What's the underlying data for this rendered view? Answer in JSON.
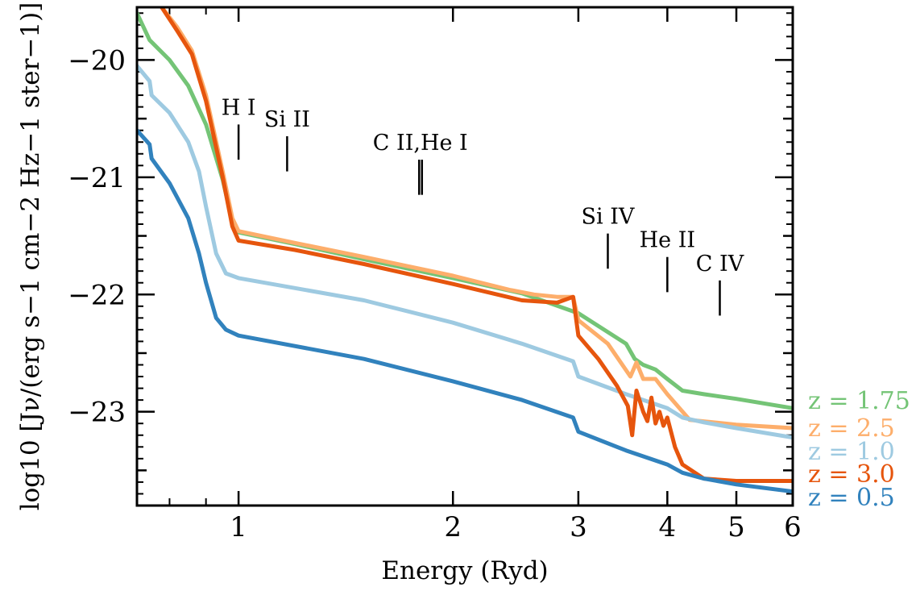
{
  "chart_data": {
    "type": "line",
    "title": "",
    "xlabel": "Energy (Ryd)",
    "ylabel": "log10 [Jν/(erg s−1 cm−2 Hz−1 ster−1)]",
    "x_scale": "log",
    "xlim": [
      0.72,
      6.0
    ],
    "ylim": [
      -23.8,
      -19.55
    ],
    "x_ticks": [
      1,
      2,
      3,
      4,
      5,
      6
    ],
    "x_tick_labels": [
      "1",
      "2",
      "3",
      "4",
      "5",
      "6"
    ],
    "y_ticks": [
      -20,
      -21,
      -22,
      -23
    ],
    "y_tick_labels": [
      "−20",
      "−21",
      "−22",
      "−23"
    ],
    "grid": false,
    "legend_position": "right",
    "ion_labels": [
      {
        "text": "H I",
        "energy": 1.0,
        "y_top": -20.55,
        "y_bottom": -20.85
      },
      {
        "text": "Si II",
        "energy": 1.17,
        "y_top": -20.65,
        "y_bottom": -20.95
      },
      {
        "text": "C II,He I",
        "energy": 1.8,
        "y_top": -20.85,
        "y_bottom": -21.15
      },
      {
        "text": "Si IV",
        "energy": 3.3,
        "y_top": -21.48,
        "y_bottom": -21.78
      },
      {
        "text": "He II",
        "energy": 4.0,
        "y_top": -21.68,
        "y_bottom": -21.98
      },
      {
        "text": "C IV",
        "energy": 4.74,
        "y_top": -21.88,
        "y_bottom": -22.18
      }
    ],
    "series": [
      {
        "name": "z = 1.75",
        "color": "#74c476",
        "points": [
          [
            0.72,
            -19.6
          ],
          [
            0.75,
            -19.83
          ],
          [
            0.8,
            -20.0
          ],
          [
            0.85,
            -20.22
          ],
          [
            0.9,
            -20.55
          ],
          [
            0.95,
            -21.02
          ],
          [
            0.98,
            -21.38
          ],
          [
            1.0,
            -21.47
          ],
          [
            1.2,
            -21.57
          ],
          [
            1.5,
            -21.7
          ],
          [
            2.0,
            -21.86
          ],
          [
            2.5,
            -21.99
          ],
          [
            3.0,
            -22.16
          ],
          [
            3.5,
            -22.42
          ],
          [
            3.6,
            -22.55
          ],
          [
            3.7,
            -22.6
          ],
          [
            3.85,
            -22.64
          ],
          [
            4.0,
            -22.72
          ],
          [
            4.2,
            -22.82
          ],
          [
            4.5,
            -22.85
          ],
          [
            5.0,
            -22.89
          ],
          [
            6.0,
            -22.97
          ]
        ]
      },
      {
        "name": "z = 2.5",
        "color": "#fdae6b",
        "points": [
          [
            0.78,
            -19.55
          ],
          [
            0.82,
            -19.72
          ],
          [
            0.86,
            -19.92
          ],
          [
            0.9,
            -20.3
          ],
          [
            0.95,
            -20.95
          ],
          [
            0.98,
            -21.35
          ],
          [
            1.0,
            -21.46
          ],
          [
            1.2,
            -21.56
          ],
          [
            1.5,
            -21.68
          ],
          [
            2.0,
            -21.84
          ],
          [
            2.4,
            -21.96
          ],
          [
            2.6,
            -22.0
          ],
          [
            2.8,
            -22.02
          ],
          [
            2.95,
            -22.02
          ],
          [
            3.0,
            -22.22
          ],
          [
            3.3,
            -22.42
          ],
          [
            3.55,
            -22.7
          ],
          [
            3.62,
            -22.58
          ],
          [
            3.7,
            -22.72
          ],
          [
            3.85,
            -22.72
          ],
          [
            4.0,
            -22.85
          ],
          [
            4.3,
            -23.07
          ],
          [
            5.0,
            -23.11
          ],
          [
            6.0,
            -23.14
          ]
        ]
      },
      {
        "name": "z = 1.0",
        "color": "#9ecae1",
        "points": [
          [
            0.72,
            -20.05
          ],
          [
            0.75,
            -20.18
          ],
          [
            0.755,
            -20.3
          ],
          [
            0.8,
            -20.45
          ],
          [
            0.85,
            -20.7
          ],
          [
            0.88,
            -20.95
          ],
          [
            0.9,
            -21.25
          ],
          [
            0.93,
            -21.65
          ],
          [
            0.96,
            -21.82
          ],
          [
            1.0,
            -21.86
          ],
          [
            1.5,
            -22.05
          ],
          [
            2.0,
            -22.24
          ],
          [
            2.5,
            -22.42
          ],
          [
            2.95,
            -22.57
          ],
          [
            3.0,
            -22.7
          ],
          [
            3.5,
            -22.85
          ],
          [
            4.0,
            -22.97
          ],
          [
            4.2,
            -23.05
          ],
          [
            4.5,
            -23.09
          ],
          [
            5.0,
            -23.14
          ],
          [
            6.0,
            -23.22
          ]
        ]
      },
      {
        "name": "z = 3.0",
        "color": "#e6550d",
        "points": [
          [
            0.78,
            -19.55
          ],
          [
            0.82,
            -19.75
          ],
          [
            0.86,
            -19.95
          ],
          [
            0.9,
            -20.35
          ],
          [
            0.95,
            -21.0
          ],
          [
            0.98,
            -21.42
          ],
          [
            1.0,
            -21.54
          ],
          [
            1.2,
            -21.62
          ],
          [
            1.5,
            -21.74
          ],
          [
            2.0,
            -21.91
          ],
          [
            2.5,
            -22.05
          ],
          [
            2.8,
            -22.07
          ],
          [
            2.95,
            -22.02
          ],
          [
            3.0,
            -22.35
          ],
          [
            3.2,
            -22.55
          ],
          [
            3.4,
            -22.78
          ],
          [
            3.52,
            -22.95
          ],
          [
            3.57,
            -23.2
          ],
          [
            3.62,
            -22.82
          ],
          [
            3.7,
            -23.0
          ],
          [
            3.75,
            -23.08
          ],
          [
            3.8,
            -22.88
          ],
          [
            3.85,
            -23.1
          ],
          [
            3.9,
            -23.0
          ],
          [
            3.95,
            -23.12
          ],
          [
            4.0,
            -23.05
          ],
          [
            4.1,
            -23.3
          ],
          [
            4.2,
            -23.45
          ],
          [
            4.5,
            -23.57
          ],
          [
            5.0,
            -23.59
          ],
          [
            6.0,
            -23.59
          ]
        ]
      },
      {
        "name": "z = 0.5",
        "color": "#3182bd",
        "points": [
          [
            0.72,
            -20.6
          ],
          [
            0.75,
            -20.72
          ],
          [
            0.755,
            -20.84
          ],
          [
            0.8,
            -21.05
          ],
          [
            0.85,
            -21.35
          ],
          [
            0.88,
            -21.65
          ],
          [
            0.9,
            -21.9
          ],
          [
            0.93,
            -22.2
          ],
          [
            0.96,
            -22.3
          ],
          [
            1.0,
            -22.35
          ],
          [
            1.5,
            -22.55
          ],
          [
            2.0,
            -22.74
          ],
          [
            2.5,
            -22.9
          ],
          [
            2.95,
            -23.05
          ],
          [
            3.0,
            -23.17
          ],
          [
            3.5,
            -23.33
          ],
          [
            4.0,
            -23.45
          ],
          [
            4.2,
            -23.52
          ],
          [
            4.5,
            -23.57
          ],
          [
            5.0,
            -23.62
          ],
          [
            6.0,
            -23.68
          ]
        ]
      }
    ]
  }
}
